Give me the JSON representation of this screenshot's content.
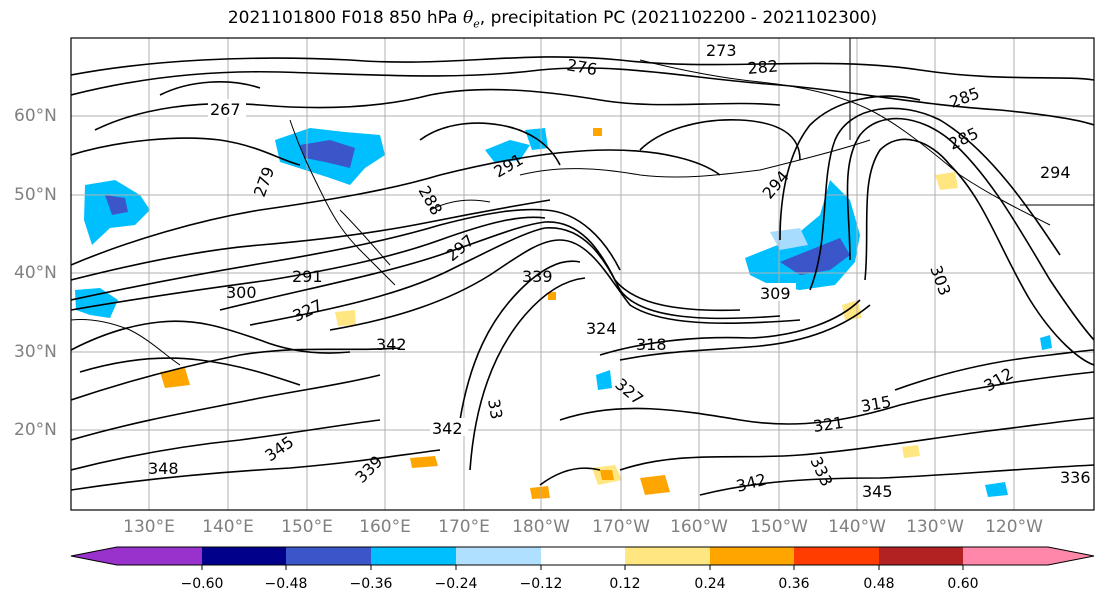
{
  "title": {
    "prefix": "2021101800 F018 850 hPa ",
    "symbol": "θ",
    "symbol_sub": "e",
    "suffix": ", precipitation PC (2021102200 - 2021102300)"
  },
  "map": {
    "lat_labels": [
      "60°N",
      "50°N",
      "40°N",
      "30°N",
      "20°N"
    ],
    "lon_labels": [
      "130°E",
      "140°E",
      "150°E",
      "160°E",
      "170°E",
      "180°W",
      "170°W",
      "160°W",
      "150°W",
      "140°W",
      "130°W",
      "120°W"
    ],
    "contour_labels": [
      "273",
      "276",
      "282",
      "285",
      "267",
      "294",
      "285",
      "288",
      "291",
      "279",
      "294",
      "303",
      "291",
      "339",
      "297",
      "300",
      "327",
      "309",
      "324",
      "342",
      "318",
      "327",
      "312",
      "315",
      "345",
      "342",
      "321",
      "339",
      "333",
      "336",
      "342",
      "345",
      "348",
      "33"
    ],
    "colors": {
      "contour": "#000000",
      "coast": "#000000",
      "grid": "#b0b0b0",
      "shading_negative": [
        "#9932cc",
        "#00008b",
        "#3a56c8",
        "#00bfff",
        "#a8dcff"
      ],
      "shading_positive": [
        "#ffe680",
        "#ffa500",
        "#ff4500",
        "#b22222",
        "#ff88aa"
      ]
    }
  },
  "colorbar": {
    "ticks": [
      "−0.60",
      "−0.48",
      "−0.36",
      "−0.24",
      "−0.12",
      "0.12",
      "0.24",
      "0.36",
      "0.48",
      "0.60"
    ],
    "colors": [
      "#9932cc",
      "#00008b",
      "#3a56c8",
      "#00bfff",
      "#b0e0ff",
      "#ffffff",
      "#ffe680",
      "#ffa500",
      "#ff3d00",
      "#b22222",
      "#ff88aa"
    ]
  }
}
